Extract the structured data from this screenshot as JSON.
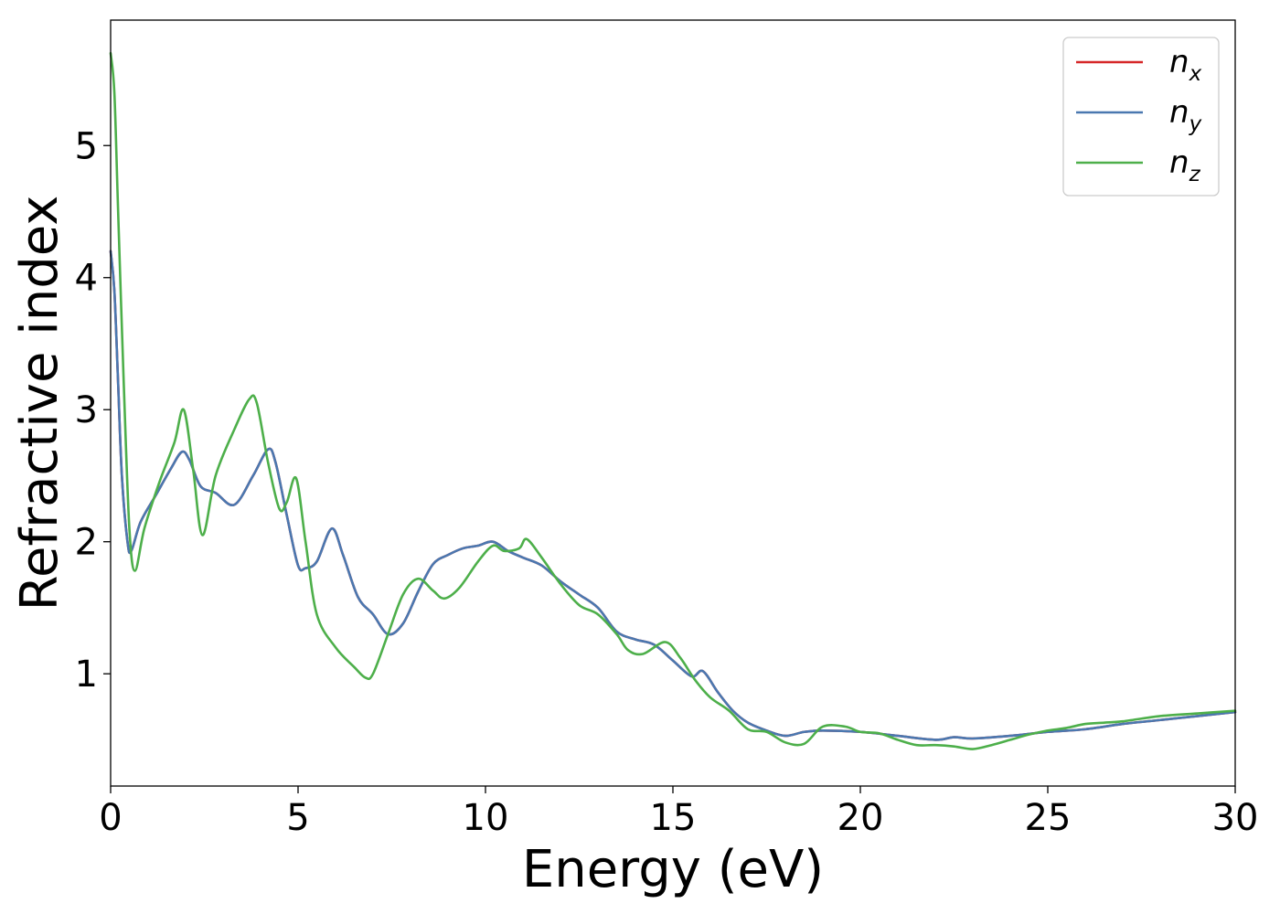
{
  "chart_data": {
    "type": "line",
    "xlabel": "Energy (eV)",
    "ylabel": "Refractive index",
    "xlim": [
      0,
      30
    ],
    "ylim": [
      0.15,
      5.95
    ],
    "xticks": [
      0,
      5,
      10,
      15,
      20,
      25,
      30
    ],
    "yticks": [
      1,
      2,
      3,
      4,
      5
    ],
    "grid": false,
    "legend_position": "top-right",
    "series": [
      {
        "name": "n_x",
        "label_base": "n",
        "label_sub": "x",
        "color": "#d62728",
        "x": [
          0.0,
          0.1,
          0.2,
          0.3,
          0.45,
          0.55,
          0.8,
          1.2,
          1.6,
          1.9,
          2.1,
          2.4,
          2.8,
          3.3,
          3.8,
          4.2,
          4.4,
          4.7,
          5.0,
          5.2,
          5.5,
          5.9,
          6.2,
          6.6,
          7.0,
          7.4,
          7.8,
          8.2,
          8.6,
          9.0,
          9.4,
          9.8,
          10.2,
          10.6,
          11.0,
          11.5,
          12.0,
          12.5,
          13.0,
          13.5,
          14.0,
          14.5,
          15.0,
          15.5,
          15.8,
          16.2,
          16.6,
          17.0,
          17.5,
          18.0,
          18.5,
          19.0,
          20.0,
          21.0,
          22.0,
          22.5,
          23.0,
          24.0,
          25.0,
          26.0,
          27.0,
          28.0,
          29.0,
          30.0
        ],
        "y": [
          4.2,
          3.9,
          3.2,
          2.5,
          2.0,
          1.93,
          2.15,
          2.35,
          2.55,
          2.68,
          2.62,
          2.42,
          2.37,
          2.28,
          2.5,
          2.7,
          2.6,
          2.2,
          1.82,
          1.8,
          1.85,
          2.1,
          1.9,
          1.58,
          1.45,
          1.3,
          1.38,
          1.62,
          1.83,
          1.9,
          1.95,
          1.97,
          2.0,
          1.93,
          1.88,
          1.82,
          1.7,
          1.6,
          1.5,
          1.32,
          1.26,
          1.22,
          1.1,
          0.98,
          1.02,
          0.86,
          0.72,
          0.63,
          0.57,
          0.53,
          0.56,
          0.57,
          0.56,
          0.53,
          0.5,
          0.52,
          0.51,
          0.53,
          0.56,
          0.58,
          0.62,
          0.65,
          0.68,
          0.71
        ]
      },
      {
        "name": "n_y",
        "label_base": "n",
        "label_sub": "y",
        "color": "#4a78b0",
        "x": [
          0.0,
          0.1,
          0.2,
          0.3,
          0.45,
          0.55,
          0.8,
          1.2,
          1.6,
          1.9,
          2.1,
          2.4,
          2.8,
          3.3,
          3.8,
          4.2,
          4.4,
          4.7,
          5.0,
          5.2,
          5.5,
          5.9,
          6.2,
          6.6,
          7.0,
          7.4,
          7.8,
          8.2,
          8.6,
          9.0,
          9.4,
          9.8,
          10.2,
          10.6,
          11.0,
          11.5,
          12.0,
          12.5,
          13.0,
          13.5,
          14.0,
          14.5,
          15.0,
          15.5,
          15.8,
          16.2,
          16.6,
          17.0,
          17.5,
          18.0,
          18.5,
          19.0,
          20.0,
          21.0,
          22.0,
          22.5,
          23.0,
          24.0,
          25.0,
          26.0,
          27.0,
          28.0,
          29.0,
          30.0
        ],
        "y": [
          4.2,
          3.9,
          3.2,
          2.5,
          2.0,
          1.93,
          2.15,
          2.35,
          2.55,
          2.68,
          2.62,
          2.42,
          2.37,
          2.28,
          2.5,
          2.7,
          2.6,
          2.2,
          1.82,
          1.8,
          1.85,
          2.1,
          1.9,
          1.58,
          1.45,
          1.3,
          1.38,
          1.62,
          1.83,
          1.9,
          1.95,
          1.97,
          2.0,
          1.93,
          1.88,
          1.82,
          1.7,
          1.6,
          1.5,
          1.32,
          1.26,
          1.22,
          1.1,
          0.98,
          1.02,
          0.86,
          0.72,
          0.63,
          0.57,
          0.53,
          0.56,
          0.57,
          0.56,
          0.53,
          0.5,
          0.52,
          0.51,
          0.53,
          0.56,
          0.58,
          0.62,
          0.65,
          0.68,
          0.71
        ]
      },
      {
        "name": "n_z",
        "label_base": "n",
        "label_sub": "z",
        "color": "#4daf4a",
        "x": [
          0.0,
          0.1,
          0.2,
          0.35,
          0.5,
          0.65,
          0.9,
          1.3,
          1.7,
          1.95,
          2.2,
          2.45,
          2.8,
          3.3,
          3.7,
          3.9,
          4.2,
          4.5,
          4.7,
          4.95,
          5.2,
          5.5,
          6.0,
          6.5,
          6.8,
          7.0,
          7.4,
          7.8,
          8.2,
          8.6,
          8.9,
          9.3,
          9.8,
          10.2,
          10.5,
          10.9,
          11.1,
          11.5,
          12.0,
          12.5,
          13.0,
          13.5,
          13.8,
          14.2,
          14.8,
          15.2,
          15.6,
          16.0,
          16.5,
          17.0,
          17.5,
          18.0,
          18.5,
          19.0,
          19.6,
          20.0,
          20.5,
          21.0,
          21.5,
          22.0,
          22.5,
          23.0,
          23.5,
          24.0,
          24.5,
          25.0,
          25.5,
          26.0,
          26.5,
          27.0,
          28.0,
          29.0,
          30.0
        ],
        "y": [
          5.7,
          5.4,
          4.5,
          3.2,
          2.1,
          1.78,
          2.1,
          2.45,
          2.75,
          3.0,
          2.55,
          2.05,
          2.5,
          2.85,
          3.08,
          3.05,
          2.6,
          2.25,
          2.3,
          2.48,
          2.0,
          1.45,
          1.2,
          1.05,
          0.97,
          1.0,
          1.3,
          1.6,
          1.72,
          1.63,
          1.57,
          1.65,
          1.85,
          1.97,
          1.93,
          1.95,
          2.02,
          1.88,
          1.68,
          1.52,
          1.45,
          1.3,
          1.18,
          1.15,
          1.24,
          1.12,
          0.95,
          0.82,
          0.72,
          0.58,
          0.56,
          0.48,
          0.47,
          0.6,
          0.6,
          0.56,
          0.55,
          0.5,
          0.46,
          0.46,
          0.45,
          0.43,
          0.46,
          0.5,
          0.54,
          0.57,
          0.59,
          0.62,
          0.63,
          0.64,
          0.68,
          0.7,
          0.72
        ]
      }
    ]
  }
}
